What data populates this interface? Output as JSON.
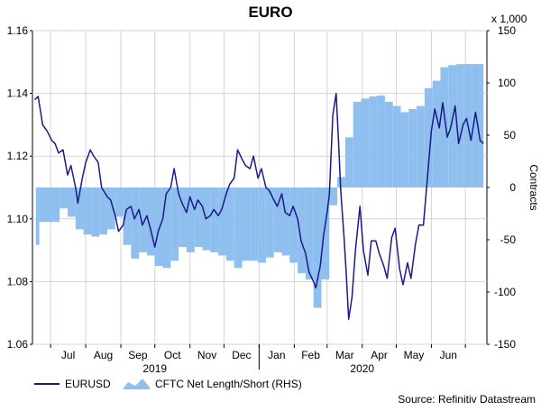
{
  "chart_data": {
    "type": "line",
    "title": "EURO",
    "source": "Source: Refinitiv Datastream",
    "left_axis": {
      "ylim": [
        1.06,
        1.16
      ],
      "ticks": [
        "1.06",
        "1.08",
        "1.10",
        "1.12",
        "1.14",
        "1.16"
      ]
    },
    "right_axis": {
      "label": "Contracts",
      "multiplier": "x 1,000",
      "ylim": [
        -150,
        150
      ],
      "ticks": [
        "-150",
        "-100",
        "-50",
        "0",
        "50",
        "100",
        "150"
      ]
    },
    "x_months": [
      "Jul",
      "Aug",
      "Sep",
      "Oct",
      "Nov",
      "Dec",
      "Jan",
      "Feb",
      "Mar",
      "Apr",
      "May",
      "Jun"
    ],
    "x_years": [
      "2019",
      "2020"
    ],
    "grid": true,
    "legend_position": "bottom-left",
    "series": [
      {
        "name": "EURUSD",
        "axis": "left",
        "color": "#1a1a8c",
        "values": [
          [
            "2019-06-17",
            1.138
          ],
          [
            "2019-06-20",
            1.139
          ],
          [
            "2019-06-24",
            1.13
          ],
          [
            "2019-06-28",
            1.128
          ],
          [
            "2019-07-02",
            1.125
          ],
          [
            "2019-07-05",
            1.124
          ],
          [
            "2019-07-08",
            1.121
          ],
          [
            "2019-07-12",
            1.122
          ],
          [
            "2019-07-16",
            1.114
          ],
          [
            "2019-07-19",
            1.117
          ],
          [
            "2019-07-23",
            1.11
          ],
          [
            "2019-07-25",
            1.105
          ],
          [
            "2019-07-29",
            1.113
          ],
          [
            "2019-08-01",
            1.118
          ],
          [
            "2019-08-05",
            1.122
          ],
          [
            "2019-08-08",
            1.12
          ],
          [
            "2019-08-12",
            1.118
          ],
          [
            "2019-08-15",
            1.11
          ],
          [
            "2019-08-20",
            1.107
          ],
          [
            "2019-08-23",
            1.106
          ],
          [
            "2019-08-27",
            1.101
          ],
          [
            "2019-08-30",
            1.096
          ],
          [
            "2019-09-03",
            1.098
          ],
          [
            "2019-09-06",
            1.103
          ],
          [
            "2019-09-10",
            1.104
          ],
          [
            "2019-09-13",
            1.1
          ],
          [
            "2019-09-17",
            1.103
          ],
          [
            "2019-09-20",
            1.098
          ],
          [
            "2019-09-24",
            1.101
          ],
          [
            "2019-09-27",
            1.097
          ],
          [
            "2019-10-01",
            1.091
          ],
          [
            "2019-10-04",
            1.096
          ],
          [
            "2019-10-08",
            1.1
          ],
          [
            "2019-10-11",
            1.108
          ],
          [
            "2019-10-15",
            1.11
          ],
          [
            "2019-10-18",
            1.116
          ],
          [
            "2019-10-22",
            1.108
          ],
          [
            "2019-10-25",
            1.105
          ],
          [
            "2019-10-29",
            1.102
          ],
          [
            "2019-11-01",
            1.107
          ],
          [
            "2019-11-05",
            1.103
          ],
          [
            "2019-11-08",
            1.106
          ],
          [
            "2019-11-12",
            1.104
          ],
          [
            "2019-11-15",
            1.1
          ],
          [
            "2019-11-19",
            1.101
          ],
          [
            "2019-11-22",
            1.103
          ],
          [
            "2019-11-26",
            1.101
          ],
          [
            "2019-11-29",
            1.103
          ],
          [
            "2019-12-03",
            1.108
          ],
          [
            "2019-12-06",
            1.111
          ],
          [
            "2019-12-10",
            1.113
          ],
          [
            "2019-12-13",
            1.122
          ],
          [
            "2019-12-17",
            1.119
          ],
          [
            "2019-12-20",
            1.117
          ],
          [
            "2019-12-24",
            1.116
          ],
          [
            "2019-12-27",
            1.12
          ],
          [
            "2019-12-31",
            1.113
          ],
          [
            "2020-01-03",
            1.116
          ],
          [
            "2020-01-07",
            1.11
          ],
          [
            "2020-01-10",
            1.109
          ],
          [
            "2020-01-14",
            1.106
          ],
          [
            "2020-01-17",
            1.104
          ],
          [
            "2020-01-21",
            1.108
          ],
          [
            "2020-01-24",
            1.102
          ],
          [
            "2020-01-28",
            1.101
          ],
          [
            "2020-01-31",
            1.104
          ],
          [
            "2020-02-04",
            1.1
          ],
          [
            "2020-02-07",
            1.093
          ],
          [
            "2020-02-11",
            1.089
          ],
          [
            "2020-02-14",
            1.083
          ],
          [
            "2020-02-18",
            1.08
          ],
          [
            "2020-02-20",
            1.078
          ],
          [
            "2020-02-24",
            1.085
          ],
          [
            "2020-02-27",
            1.095
          ],
          [
            "2020-03-01",
            1.102
          ],
          [
            "2020-03-03",
            1.108
          ],
          [
            "2020-03-06",
            1.133
          ],
          [
            "2020-03-09",
            1.14
          ],
          [
            "2020-03-11",
            1.125
          ],
          [
            "2020-03-13",
            1.109
          ],
          [
            "2020-03-16",
            1.094
          ],
          [
            "2020-03-18",
            1.082
          ],
          [
            "2020-03-20",
            1.068
          ],
          [
            "2020-03-23",
            1.075
          ],
          [
            "2020-03-26",
            1.09
          ],
          [
            "2020-03-30",
            1.104
          ],
          [
            "2020-04-02",
            1.09
          ],
          [
            "2020-04-06",
            1.082
          ],
          [
            "2020-04-09",
            1.093
          ],
          [
            "2020-04-13",
            1.093
          ],
          [
            "2020-04-16",
            1.089
          ],
          [
            "2020-04-20",
            1.085
          ],
          [
            "2020-04-23",
            1.081
          ],
          [
            "2020-04-27",
            1.094
          ],
          [
            "2020-04-30",
            1.097
          ],
          [
            "2020-05-04",
            1.084
          ],
          [
            "2020-05-07",
            1.079
          ],
          [
            "2020-05-11",
            1.086
          ],
          [
            "2020-05-14",
            1.081
          ],
          [
            "2020-05-18",
            1.092
          ],
          [
            "2020-05-21",
            1.098
          ],
          [
            "2020-05-25",
            1.098
          ],
          [
            "2020-05-28",
            1.111
          ],
          [
            "2020-06-01",
            1.128
          ],
          [
            "2020-06-04",
            1.135
          ],
          [
            "2020-06-08",
            1.129
          ],
          [
            "2020-06-11",
            1.137
          ],
          [
            "2020-06-15",
            1.126
          ],
          [
            "2020-06-18",
            1.129
          ],
          [
            "2020-06-22",
            1.136
          ],
          [
            "2020-06-25",
            1.124
          ],
          [
            "2020-06-29",
            1.13
          ],
          [
            "2020-07-02",
            1.132
          ],
          [
            "2020-07-06",
            1.125
          ],
          [
            "2020-07-10",
            1.134
          ],
          [
            "2020-07-14",
            1.125
          ],
          [
            "2020-07-17",
            1.124
          ]
        ]
      },
      {
        "name": "CFTC Net Length/Short (RHS)",
        "axis": "right",
        "color": "#8fbfee",
        "type": "step-area",
        "values": [
          [
            "2019-06-18",
            -55
          ],
          [
            "2019-06-21",
            -33
          ],
          [
            "2019-07-09",
            -20
          ],
          [
            "2019-07-16",
            -28
          ],
          [
            "2019-07-23",
            -40
          ],
          [
            "2019-07-30",
            -45
          ],
          [
            "2019-08-06",
            -47
          ],
          [
            "2019-08-13",
            -45
          ],
          [
            "2019-08-20",
            -40
          ],
          [
            "2019-08-27",
            -28
          ],
          [
            "2019-09-03",
            -55
          ],
          [
            "2019-09-10",
            -68
          ],
          [
            "2019-09-17",
            -62
          ],
          [
            "2019-09-24",
            -65
          ],
          [
            "2019-10-01",
            -75
          ],
          [
            "2019-10-08",
            -77
          ],
          [
            "2019-10-15",
            -70
          ],
          [
            "2019-10-22",
            -57
          ],
          [
            "2019-10-29",
            -62
          ],
          [
            "2019-11-05",
            -57
          ],
          [
            "2019-11-12",
            -60
          ],
          [
            "2019-11-19",
            -62
          ],
          [
            "2019-11-26",
            -65
          ],
          [
            "2019-12-03",
            -70
          ],
          [
            "2019-12-10",
            -77
          ],
          [
            "2019-12-17",
            -70
          ],
          [
            "2019-12-24",
            -70
          ],
          [
            "2019-12-31",
            -72
          ],
          [
            "2020-01-07",
            -67
          ],
          [
            "2020-01-14",
            -62
          ],
          [
            "2020-01-21",
            -65
          ],
          [
            "2020-01-28",
            -72
          ],
          [
            "2020-02-04",
            -82
          ],
          [
            "2020-02-11",
            -88
          ],
          [
            "2020-02-18",
            -115
          ],
          [
            "2020-02-25",
            -88
          ],
          [
            "2020-03-03",
            -17
          ],
          [
            "2020-03-10",
            10
          ],
          [
            "2020-03-17",
            48
          ],
          [
            "2020-03-24",
            82
          ],
          [
            "2020-03-31",
            85
          ],
          [
            "2020-04-07",
            87
          ],
          [
            "2020-04-14",
            88
          ],
          [
            "2020-04-21",
            82
          ],
          [
            "2020-04-28",
            78
          ],
          [
            "2020-05-05",
            72
          ],
          [
            "2020-05-12",
            75
          ],
          [
            "2020-05-19",
            78
          ],
          [
            "2020-05-26",
            95
          ],
          [
            "2020-06-02",
            102
          ],
          [
            "2020-06-09",
            115
          ],
          [
            "2020-06-16",
            117
          ],
          [
            "2020-06-23",
            118
          ],
          [
            "2020-06-30",
            118
          ],
          [
            "2020-07-07",
            118
          ],
          [
            "2020-07-14",
            118
          ]
        ]
      }
    ]
  },
  "legend": [
    {
      "label": "EURUSD",
      "color": "#1a1a8c"
    },
    {
      "label": "CFTC Net Length/Short (RHS)",
      "color": "#8fbfee"
    }
  ]
}
